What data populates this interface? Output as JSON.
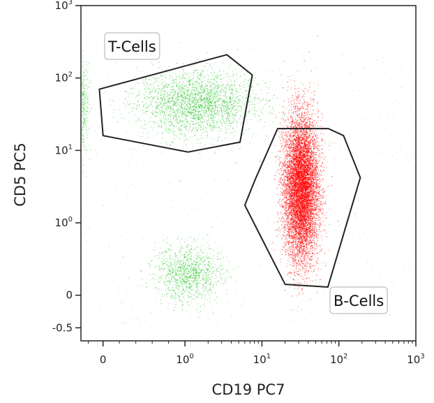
{
  "chart_data": {
    "type": "scatter",
    "title": "",
    "xlabel": "CD19 PC7",
    "ylabel": "CD5 PC5",
    "x_scale": "biexponential",
    "y_scale": "biexponential",
    "xlim": [
      -0.3,
      1000
    ],
    "ylim": [
      -0.7,
      1000
    ],
    "x_ticks": [
      {
        "value": 0,
        "label": "0"
      },
      {
        "value": 1,
        "label": "10⁰"
      },
      {
        "value": 10,
        "label": "10¹"
      },
      {
        "value": 100,
        "label": "10²"
      },
      {
        "value": 1000,
        "label": "10³"
      }
    ],
    "y_ticks": [
      {
        "value": -0.5,
        "label": "-0.5"
      },
      {
        "value": 0,
        "label": "0"
      },
      {
        "value": 1,
        "label": "10⁰"
      },
      {
        "value": 10,
        "label": "10¹"
      },
      {
        "value": 100,
        "label": "10²"
      },
      {
        "value": 1000,
        "label": "10³"
      }
    ],
    "grid": false,
    "colors": {
      "t_cells": "#2ec42e",
      "b_cells": "#ff0000",
      "gate": "#222222"
    },
    "gates": [
      {
        "name": "T-Cells",
        "vertices": [
          [
            -0.05,
            70
          ],
          [
            3.5,
            210
          ],
          [
            7.5,
            110
          ],
          [
            5.2,
            13
          ],
          [
            1.1,
            9.5
          ],
          [
            0.0,
            16
          ]
        ]
      },
      {
        "name": "B-Cells",
        "vertices": [
          [
            16,
            20
          ],
          [
            73,
            20
          ],
          [
            115,
            16
          ],
          [
            190,
            4.2
          ],
          [
            72,
            0.15
          ],
          [
            20,
            0.2
          ],
          [
            6,
            1.75
          ],
          [
            8.2,
            4
          ]
        ]
      }
    ],
    "populations": [
      {
        "name": "T-Cells",
        "center": [
          1.4,
          45
        ],
        "spread": [
          2.0,
          1.6
        ],
        "color": "#2ec42e"
      },
      {
        "name": "B-Cells",
        "center": [
          32,
          3
        ],
        "spread": [
          1.5,
          2.9
        ],
        "color": "#ff0000"
      },
      {
        "name": "",
        "center": [
          1.1,
          0.4
        ],
        "spread": [
          1.7,
          1.5
        ],
        "color": "#2ec42e"
      }
    ]
  }
}
